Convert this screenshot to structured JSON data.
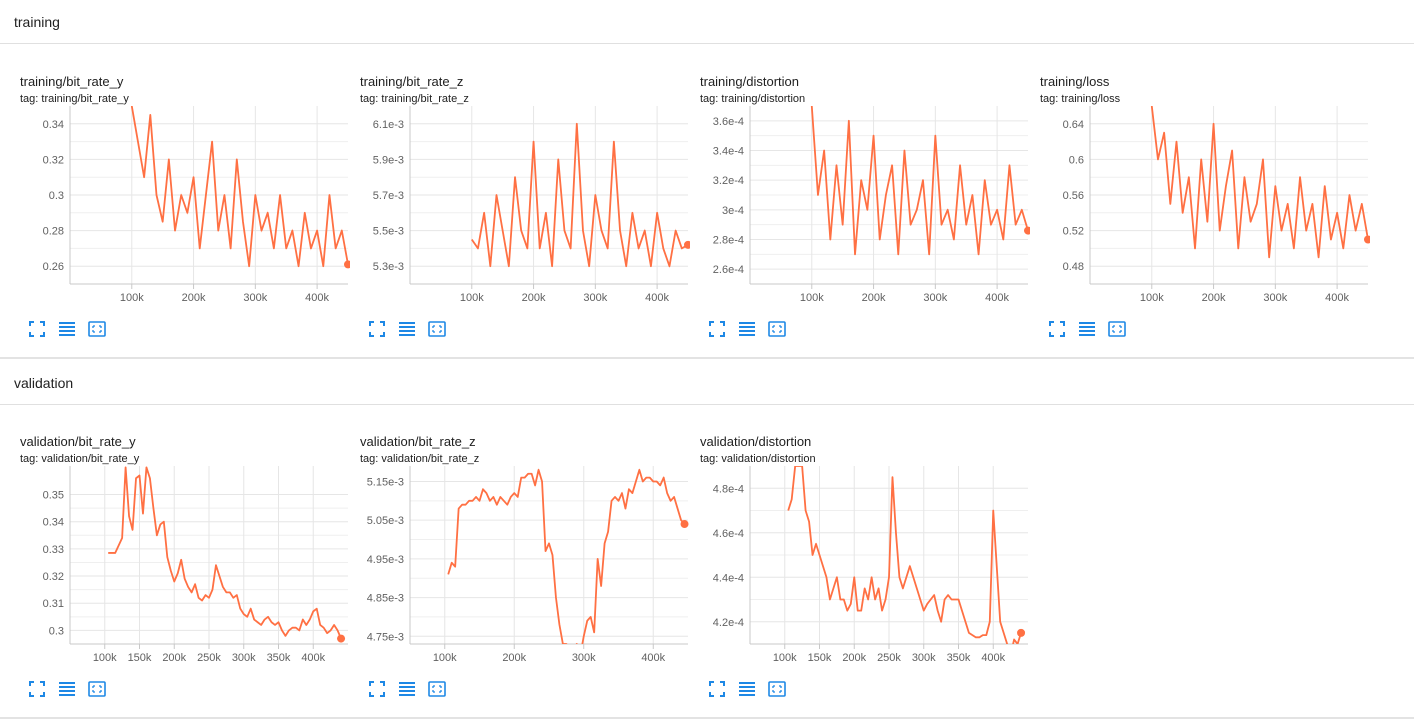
{
  "sections": [
    {
      "name": "training",
      "title": "training"
    },
    {
      "name": "validation",
      "title": "validation"
    }
  ],
  "colors": {
    "line": "#ff7043",
    "line_faint": "#fcd5c8",
    "grid": "#e6e6e6",
    "axis": "#c8c8c8",
    "icon": "#1e88e5"
  },
  "icons": [
    "fullscreen-icon",
    "data-table-icon",
    "fit-domain-icon"
  ],
  "chart_data": [
    {
      "type": "line",
      "title": "training/bit_rate_y",
      "tag": "tag: training/bit_rate_y",
      "xlim": [
        0,
        450000
      ],
      "ylim": [
        0.25,
        0.35
      ],
      "xticks": [
        100000,
        200000,
        300000,
        400000
      ],
      "xtick_labels": [
        "100k",
        "200k",
        "300k",
        "400k"
      ],
      "yticks": [
        0.26,
        0.28,
        0.3,
        0.32,
        0.34
      ],
      "ytick_labels": [
        "0.26",
        "0.28",
        "0.3",
        "0.32",
        "0.34"
      ],
      "series": [
        {
          "x": [
            100000,
            110000,
            120000,
            130000,
            140000,
            150000,
            160000,
            170000,
            180000,
            190000,
            200000,
            210000,
            220000,
            230000,
            240000,
            250000,
            260000,
            270000,
            280000,
            290000,
            300000,
            310000,
            320000,
            330000,
            340000,
            350000,
            360000,
            370000,
            380000,
            390000,
            400000,
            410000,
            420000,
            430000,
            440000,
            450000
          ],
          "y": [
            0.35,
            0.33,
            0.31,
            0.345,
            0.3,
            0.285,
            0.32,
            0.28,
            0.3,
            0.29,
            0.31,
            0.27,
            0.3,
            0.33,
            0.28,
            0.3,
            0.27,
            0.32,
            0.285,
            0.26,
            0.3,
            0.28,
            0.29,
            0.27,
            0.3,
            0.27,
            0.28,
            0.26,
            0.29,
            0.27,
            0.28,
            0.26,
            0.3,
            0.27,
            0.28,
            0.261
          ]
        }
      ]
    },
    {
      "type": "line",
      "title": "training/bit_rate_z",
      "tag": "tag: training/bit_rate_z",
      "xlim": [
        0,
        450000
      ],
      "ylim": [
        0.0052,
        0.0062
      ],
      "xticks": [
        100000,
        200000,
        300000,
        400000
      ],
      "xtick_labels": [
        "100k",
        "200k",
        "300k",
        "400k"
      ],
      "yticks": [
        0.0053,
        0.0055,
        0.0057,
        0.0059,
        0.0061
      ],
      "ytick_labels": [
        "5.3e-3",
        "5.5e-3",
        "5.7e-3",
        "5.9e-3",
        "6.1e-3"
      ],
      "series": [
        {
          "x": [
            100000,
            110000,
            120000,
            130000,
            140000,
            150000,
            160000,
            170000,
            180000,
            190000,
            200000,
            210000,
            220000,
            230000,
            240000,
            250000,
            260000,
            270000,
            280000,
            290000,
            300000,
            310000,
            320000,
            330000,
            340000,
            350000,
            360000,
            370000,
            380000,
            390000,
            400000,
            410000,
            420000,
            430000,
            440000,
            450000
          ],
          "y": [
            0.00545,
            0.0054,
            0.0056,
            0.0053,
            0.0057,
            0.0055,
            0.0053,
            0.0058,
            0.0055,
            0.0054,
            0.006,
            0.0054,
            0.0056,
            0.0053,
            0.0059,
            0.0055,
            0.0054,
            0.0061,
            0.0055,
            0.0053,
            0.0057,
            0.0055,
            0.0054,
            0.006,
            0.0055,
            0.0053,
            0.0056,
            0.0054,
            0.0055,
            0.0053,
            0.0056,
            0.0054,
            0.0053,
            0.0055,
            0.0054,
            0.00542
          ]
        }
      ]
    },
    {
      "type": "line",
      "title": "training/distortion",
      "tag": "tag: training/distortion",
      "xlim": [
        0,
        450000
      ],
      "ylim": [
        0.00025,
        0.00037
      ],
      "xticks": [
        100000,
        200000,
        300000,
        400000
      ],
      "xtick_labels": [
        "100k",
        "200k",
        "300k",
        "400k"
      ],
      "yticks": [
        0.00026,
        0.00028,
        0.0003,
        0.00032,
        0.00034,
        0.00036
      ],
      "ytick_labels": [
        "2.6e-4",
        "2.8e-4",
        "3e-4",
        "3.2e-4",
        "3.4e-4",
        "3.6e-4"
      ],
      "series": [
        {
          "x": [
            100000,
            110000,
            120000,
            130000,
            140000,
            150000,
            160000,
            170000,
            180000,
            190000,
            200000,
            210000,
            220000,
            230000,
            240000,
            250000,
            260000,
            270000,
            280000,
            290000,
            300000,
            310000,
            320000,
            330000,
            340000,
            350000,
            360000,
            370000,
            380000,
            390000,
            400000,
            410000,
            420000,
            430000,
            440000,
            450000
          ],
          "y": [
            0.00037,
            0.00031,
            0.00034,
            0.00028,
            0.00033,
            0.00029,
            0.00036,
            0.00027,
            0.00032,
            0.0003,
            0.00035,
            0.00028,
            0.00031,
            0.00033,
            0.00027,
            0.00034,
            0.00029,
            0.0003,
            0.00032,
            0.00027,
            0.00035,
            0.00029,
            0.0003,
            0.00028,
            0.00033,
            0.00029,
            0.00031,
            0.00027,
            0.00032,
            0.00029,
            0.0003,
            0.00028,
            0.00033,
            0.00029,
            0.0003,
            0.000286
          ]
        }
      ]
    },
    {
      "type": "line",
      "title": "training/loss",
      "tag": "tag: training/loss",
      "xlim": [
        0,
        450000
      ],
      "ylim": [
        0.46,
        0.66
      ],
      "xticks": [
        100000,
        200000,
        300000,
        400000
      ],
      "xtick_labels": [
        "100k",
        "200k",
        "300k",
        "400k"
      ],
      "yticks": [
        0.48,
        0.52,
        0.56,
        0.6,
        0.64
      ],
      "ytick_labels": [
        "0.48",
        "0.52",
        "0.56",
        "0.6",
        "0.64"
      ],
      "series": [
        {
          "x": [
            100000,
            110000,
            120000,
            130000,
            140000,
            150000,
            160000,
            170000,
            180000,
            190000,
            200000,
            210000,
            220000,
            230000,
            240000,
            250000,
            260000,
            270000,
            280000,
            290000,
            300000,
            310000,
            320000,
            330000,
            340000,
            350000,
            360000,
            370000,
            380000,
            390000,
            400000,
            410000,
            420000,
            430000,
            440000,
            450000
          ],
          "y": [
            0.66,
            0.6,
            0.63,
            0.55,
            0.62,
            0.54,
            0.58,
            0.5,
            0.6,
            0.53,
            0.64,
            0.52,
            0.57,
            0.61,
            0.5,
            0.58,
            0.53,
            0.55,
            0.6,
            0.49,
            0.57,
            0.52,
            0.55,
            0.5,
            0.58,
            0.52,
            0.55,
            0.49,
            0.57,
            0.51,
            0.54,
            0.5,
            0.56,
            0.52,
            0.55,
            0.51
          ]
        }
      ]
    },
    {
      "type": "line",
      "title": "validation/bit_rate_y",
      "tag": "tag: validation/bit_rate_y",
      "xlim": [
        50000,
        450000
      ],
      "ylim": [
        0.295,
        0.3605
      ],
      "xticks": [
        100000,
        150000,
        200000,
        250000,
        300000,
        350000,
        400000
      ],
      "xtick_labels": [
        "100k",
        "150k",
        "200k",
        "250k",
        "300k",
        "350k",
        "400k"
      ],
      "yticks": [
        0.3,
        0.31,
        0.32,
        0.33,
        0.34,
        0.35
      ],
      "ytick_labels": [
        "0.3",
        "0.31",
        "0.32",
        "0.33",
        "0.34",
        "0.35"
      ],
      "series": [
        {
          "x": [
            105000,
            115000,
            125000,
            130000,
            135000,
            140000,
            145000,
            150000,
            155000,
            160000,
            165000,
            170000,
            175000,
            180000,
            185000,
            190000,
            195000,
            200000,
            205000,
            210000,
            215000,
            220000,
            225000,
            230000,
            235000,
            240000,
            245000,
            250000,
            255000,
            260000,
            265000,
            270000,
            275000,
            280000,
            285000,
            290000,
            295000,
            300000,
            305000,
            310000,
            315000,
            320000,
            325000,
            330000,
            335000,
            340000,
            345000,
            350000,
            355000,
            360000,
            365000,
            370000,
            375000,
            380000,
            385000,
            390000,
            395000,
            400000,
            405000,
            410000,
            415000,
            420000,
            425000,
            430000,
            435000,
            440000
          ],
          "y": [
            0.3285,
            0.3285,
            0.334,
            0.36,
            0.342,
            0.337,
            0.356,
            0.357,
            0.343,
            0.36,
            0.356,
            0.345,
            0.335,
            0.339,
            0.34,
            0.327,
            0.322,
            0.318,
            0.321,
            0.326,
            0.319,
            0.316,
            0.314,
            0.317,
            0.312,
            0.311,
            0.313,
            0.312,
            0.315,
            0.324,
            0.32,
            0.316,
            0.314,
            0.314,
            0.312,
            0.313,
            0.308,
            0.306,
            0.305,
            0.308,
            0.304,
            0.303,
            0.302,
            0.304,
            0.305,
            0.303,
            0.302,
            0.303,
            0.3,
            0.298,
            0.3,
            0.301,
            0.301,
            0.3,
            0.304,
            0.302,
            0.304,
            0.307,
            0.308,
            0.302,
            0.301,
            0.299,
            0.3,
            0.302,
            0.3,
            0.297
          ]
        }
      ]
    },
    {
      "type": "line",
      "title": "validation/bit_rate_z",
      "tag": "tag: validation/bit_rate_z",
      "xlim": [
        50000,
        450000
      ],
      "ylim": [
        0.00473,
        0.00519
      ],
      "xticks": [
        100000,
        200000,
        300000,
        400000
      ],
      "xtick_labels": [
        "100k",
        "200k",
        "300k",
        "400k"
      ],
      "yticks": [
        0.00475,
        0.00485,
        0.00495,
        0.00505,
        0.00515
      ],
      "ytick_labels": [
        "4.75e-3",
        "4.85e-3",
        "4.95e-3",
        "5.05e-3",
        "5.15e-3"
      ],
      "series": [
        {
          "x": [
            105000,
            110000,
            115000,
            120000,
            125000,
            130000,
            135000,
            140000,
            145000,
            150000,
            155000,
            160000,
            165000,
            170000,
            175000,
            180000,
            185000,
            190000,
            195000,
            200000,
            205000,
            210000,
            215000,
            220000,
            225000,
            230000,
            235000,
            240000,
            245000,
            250000,
            255000,
            260000,
            265000,
            270000,
            275000,
            280000,
            285000,
            290000,
            295000,
            300000,
            305000,
            310000,
            315000,
            320000,
            325000,
            330000,
            335000,
            340000,
            345000,
            350000,
            355000,
            360000,
            365000,
            370000,
            375000,
            380000,
            385000,
            390000,
            395000,
            400000,
            405000,
            410000,
            415000,
            420000,
            425000,
            430000,
            435000,
            440000,
            445000
          ],
          "y": [
            0.00491,
            0.00494,
            0.00493,
            0.00508,
            0.00509,
            0.00509,
            0.0051,
            0.0051,
            0.00511,
            0.0051,
            0.00513,
            0.00512,
            0.0051,
            0.00511,
            0.00509,
            0.00511,
            0.0051,
            0.00509,
            0.00511,
            0.00512,
            0.00511,
            0.00516,
            0.00516,
            0.00517,
            0.00517,
            0.00514,
            0.00518,
            0.00515,
            0.00497,
            0.00499,
            0.00496,
            0.00485,
            0.00478,
            0.00473,
            0.00473,
            0.00472,
            0.00472,
            0.00473,
            0.0047,
            0.00475,
            0.00479,
            0.0048,
            0.00476,
            0.00495,
            0.00488,
            0.00499,
            0.00502,
            0.0051,
            0.00511,
            0.0051,
            0.00512,
            0.00508,
            0.00513,
            0.00512,
            0.00515,
            0.00518,
            0.00515,
            0.00516,
            0.00516,
            0.00515,
            0.00515,
            0.00514,
            0.00516,
            0.00512,
            0.0051,
            0.00511,
            0.00508,
            0.00505,
            0.00504
          ]
        }
      ]
    },
    {
      "type": "line",
      "title": "validation/distortion",
      "tag": "tag: validation/distortion",
      "xlim": [
        50000,
        450000
      ],
      "ylim": [
        0.00041,
        0.00049
      ],
      "xticks": [
        100000,
        150000,
        200000,
        250000,
        300000,
        350000,
        400000
      ],
      "xtick_labels": [
        "100k",
        "150k",
        "200k",
        "250k",
        "300k",
        "350k",
        "400k"
      ],
      "yticks": [
        0.00042,
        0.00044,
        0.00046,
        0.00048
      ],
      "ytick_labels": [
        "4.2e-4",
        "4.4e-4",
        "4.6e-4",
        "4.8e-4"
      ],
      "series": [
        {
          "x": [
            105000,
            110000,
            115000,
            120000,
            125000,
            130000,
            135000,
            140000,
            145000,
            150000,
            155000,
            160000,
            165000,
            170000,
            175000,
            180000,
            185000,
            190000,
            195000,
            200000,
            205000,
            210000,
            215000,
            220000,
            225000,
            230000,
            235000,
            240000,
            245000,
            250000,
            255000,
            260000,
            265000,
            270000,
            275000,
            280000,
            285000,
            290000,
            295000,
            300000,
            305000,
            310000,
            315000,
            320000,
            325000,
            330000,
            335000,
            340000,
            345000,
            350000,
            355000,
            360000,
            365000,
            370000,
            375000,
            380000,
            385000,
            390000,
            395000,
            400000,
            405000,
            410000,
            415000,
            420000,
            425000,
            430000,
            435000,
            440000
          ],
          "y": [
            0.00047,
            0.000475,
            0.00049,
            0.00049,
            0.00049,
            0.00047,
            0.000465,
            0.00045,
            0.000455,
            0.00045,
            0.000445,
            0.00044,
            0.00043,
            0.000435,
            0.00044,
            0.00043,
            0.00043,
            0.000425,
            0.000428,
            0.00044,
            0.000425,
            0.000425,
            0.000435,
            0.00043,
            0.00044,
            0.00043,
            0.000435,
            0.000425,
            0.00043,
            0.00044,
            0.000485,
            0.00046,
            0.00044,
            0.000435,
            0.00044,
            0.000445,
            0.00044,
            0.000435,
            0.00043,
            0.000425,
            0.000428,
            0.00043,
            0.000432,
            0.000425,
            0.00042,
            0.00043,
            0.000432,
            0.00043,
            0.00043,
            0.00043,
            0.000425,
            0.00042,
            0.000415,
            0.000414,
            0.000413,
            0.000413,
            0.000414,
            0.000414,
            0.00042,
            0.00047,
            0.000445,
            0.00042,
            0.000415,
            0.00041,
            0.000405,
            0.000412,
            0.00041,
            0.000415
          ]
        }
      ]
    }
  ]
}
